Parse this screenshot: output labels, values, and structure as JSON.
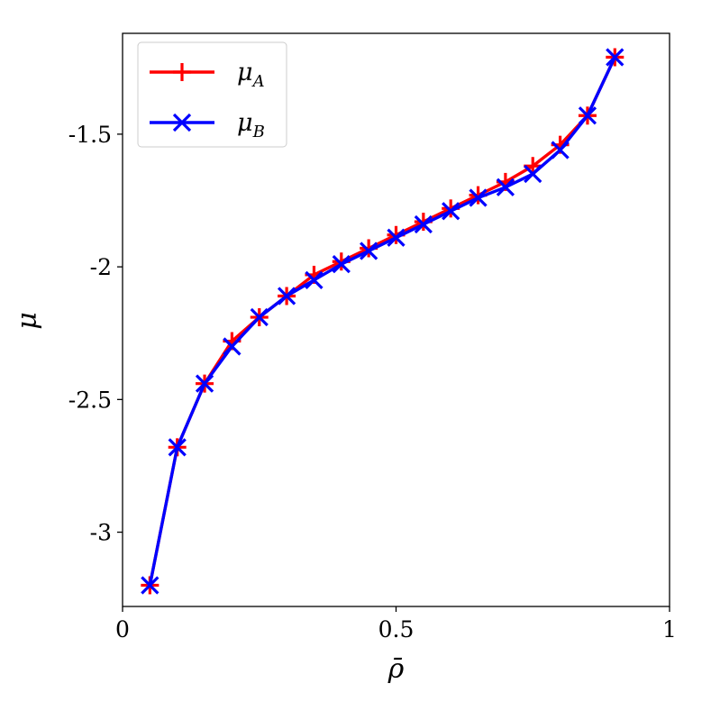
{
  "chart_data": {
    "type": "line",
    "xlabel": "ρ̄",
    "ylabel": "μ",
    "xlim": [
      0,
      1
    ],
    "ylim": [
      -3.28,
      -1.12
    ],
    "grid": false,
    "legend_position": "top-left",
    "x_ticks": [
      {
        "value": 0,
        "label": "0"
      },
      {
        "value": 0.5,
        "label": "0.5"
      },
      {
        "value": 1,
        "label": "1"
      }
    ],
    "y_ticks": [
      {
        "value": -1.5,
        "label": "-1.5"
      },
      {
        "value": -2,
        "label": "-2"
      },
      {
        "value": -2.5,
        "label": "-2.5"
      },
      {
        "value": -3,
        "label": "-3"
      }
    ],
    "x": [
      0.05,
      0.1,
      0.15,
      0.2,
      0.25,
      0.3,
      0.35,
      0.4,
      0.45,
      0.5,
      0.55,
      0.6,
      0.65,
      0.7,
      0.75,
      0.8,
      0.85,
      0.9
    ],
    "series": [
      {
        "name": "μ_A",
        "legend_base": "μ",
        "legend_sub": "A",
        "color": "#ff0000",
        "marker": "plus",
        "values": [
          -3.2,
          -2.68,
          -2.44,
          -2.28,
          -2.19,
          -2.11,
          -2.03,
          -1.98,
          -1.93,
          -1.88,
          -1.83,
          -1.78,
          -1.73,
          -1.68,
          -1.62,
          -1.54,
          -1.43,
          -1.21
        ]
      },
      {
        "name": "μ_B",
        "legend_base": "μ",
        "legend_sub": "B",
        "color": "#0000ff",
        "marker": "x",
        "values": [
          -3.2,
          -2.68,
          -2.44,
          -2.3,
          -2.19,
          -2.11,
          -2.05,
          -1.99,
          -1.94,
          -1.89,
          -1.84,
          -1.79,
          -1.74,
          -1.7,
          -1.65,
          -1.56,
          -1.43,
          -1.21
        ]
      }
    ]
  }
}
